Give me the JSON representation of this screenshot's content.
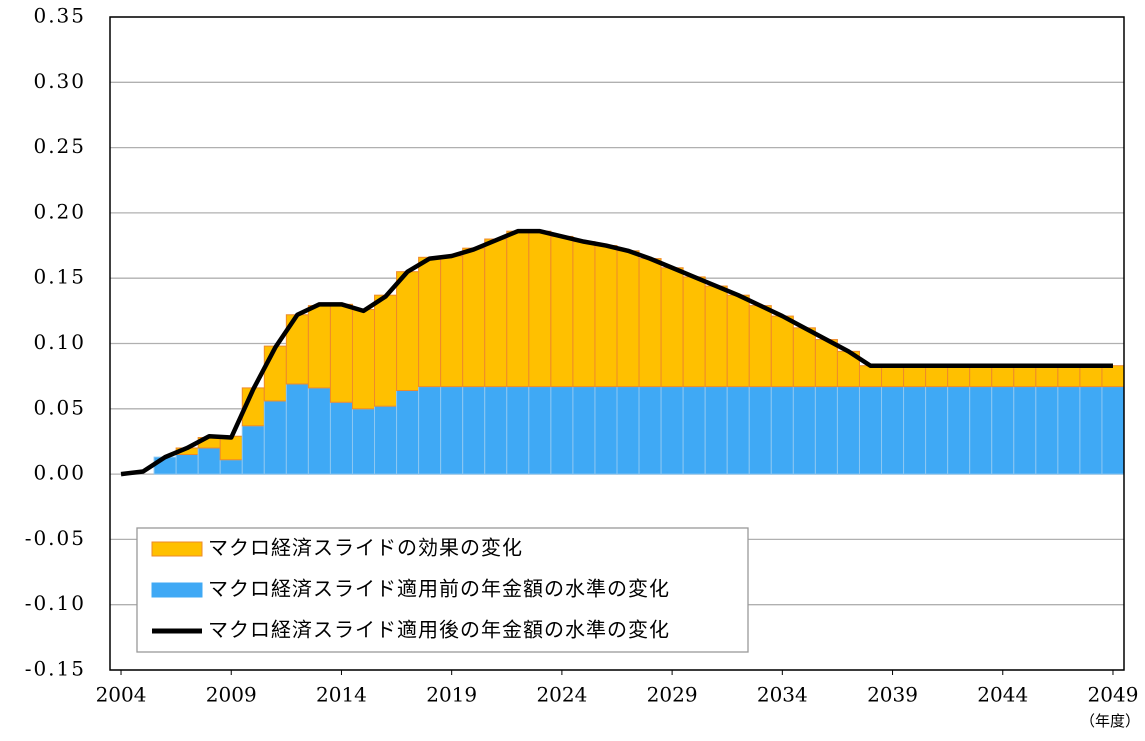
{
  "chart_data": {
    "type": "bar",
    "stacked": true,
    "x": [
      2004,
      2005,
      2006,
      2007,
      2008,
      2009,
      2010,
      2011,
      2012,
      2013,
      2014,
      2015,
      2016,
      2017,
      2018,
      2019,
      2020,
      2021,
      2022,
      2023,
      2024,
      2025,
      2026,
      2027,
      2028,
      2029,
      2030,
      2031,
      2032,
      2033,
      2034,
      2035,
      2036,
      2037,
      2038,
      2039,
      2040,
      2041,
      2042,
      2043,
      2044,
      2045,
      2046,
      2047,
      2048,
      2049
    ],
    "xlim": [
      2003.5,
      2049.5
    ],
    "xticks": [
      2004,
      2009,
      2014,
      2019,
      2024,
      2029,
      2034,
      2039,
      2044,
      2049
    ],
    "x_label": "（年度）",
    "ylim": [
      -0.15,
      0.35
    ],
    "yticks": [
      {
        "value": 0.35,
        "label": "0.35"
      },
      {
        "value": 0.3,
        "label": "0.30"
      },
      {
        "value": 0.25,
        "label": "0.25"
      },
      {
        "value": 0.2,
        "label": "0.20"
      },
      {
        "value": 0.15,
        "label": "0.15"
      },
      {
        "value": 0.1,
        "label": "0.10"
      },
      {
        "value": 0.05,
        "label": "0.05"
      },
      {
        "value": 0,
        "label": "0.00"
      },
      {
        "value": -0.05,
        "label": "-0.05"
      },
      {
        "value": -0.1,
        "label": "-0.10"
      },
      {
        "value": -0.15,
        "label": "-0.15"
      }
    ],
    "grid": true,
    "legend": "lower-left",
    "series": [
      {
        "name": "マクロ経済スライド適用前の年金額の水準の変化",
        "type": "bar",
        "color": "#3fa9f5",
        "values": [
          0,
          0,
          0.013,
          0.015,
          0.02,
          0.011,
          0.037,
          0.056,
          0.069,
          0.066,
          0.055,
          0.05,
          0.052,
          0.064,
          0.067,
          0.067,
          0.067,
          0.067,
          0.067,
          0.067,
          0.067,
          0.067,
          0.067,
          0.067,
          0.067,
          0.067,
          0.067,
          0.067,
          0.067,
          0.067,
          0.067,
          0.067,
          0.067,
          0.067,
          0.067,
          0.067,
          0.067,
          0.067,
          0.067,
          0.067,
          0.067,
          0.067,
          0.067,
          0.067,
          0.067,
          0.067
        ]
      },
      {
        "name": "マクロ経済スライドの効果の変化",
        "type": "bar",
        "color": "#ffc000",
        "values": [
          0,
          0,
          0,
          0.005,
          0.008,
          0.018,
          0.029,
          0.042,
          0.053,
          0.063,
          0.075,
          0.076,
          0.085,
          0.091,
          0.099,
          0.1,
          0.106,
          0.113,
          0.119,
          0.119,
          0.115,
          0.111,
          0.108,
          0.104,
          0.098,
          0.091,
          0.084,
          0.077,
          0.07,
          0.062,
          0.054,
          0.045,
          0.036,
          0.027,
          0.016,
          0.016,
          0.016,
          0.016,
          0.016,
          0.016,
          0.016,
          0.016,
          0.016,
          0.016,
          0.016,
          0.016
        ]
      },
      {
        "name": "マクロ経済スライド適用後の年金額の水準の変化",
        "type": "line",
        "color": "#000000",
        "values": [
          0,
          0.002,
          0.013,
          0.02,
          0.029,
          0.028,
          0.065,
          0.097,
          0.122,
          0.13,
          0.13,
          0.125,
          0.136,
          0.155,
          0.165,
          0.167,
          0.172,
          0.179,
          0.186,
          0.186,
          0.182,
          0.178,
          0.175,
          0.171,
          0.165,
          0.158,
          0.151,
          0.144,
          0.137,
          0.129,
          0.121,
          0.112,
          0.103,
          0.094,
          0.083,
          0.083,
          0.083,
          0.083,
          0.083,
          0.083,
          0.083,
          0.083,
          0.083,
          0.083,
          0.083,
          0.083
        ]
      }
    ]
  }
}
